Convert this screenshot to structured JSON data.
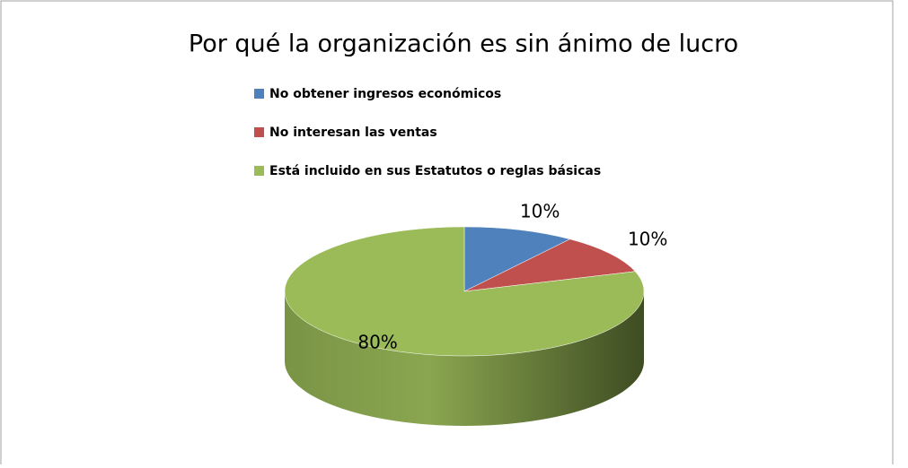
{
  "chart_data": {
    "type": "pie3d",
    "title": "Por qué la organización es sin ánimo de lucro",
    "categories": [
      "No obtener ingresos económicos",
      "No interesan las ventas",
      "Está incluido en sus Estatutos  o reglas básicas"
    ],
    "values": [
      10,
      10,
      80
    ],
    "value_labels": [
      "10%",
      "10%",
      "80%"
    ],
    "colors": [
      "#4f81bd",
      "#c0504d",
      "#9bbb59"
    ],
    "legend": "top"
  }
}
